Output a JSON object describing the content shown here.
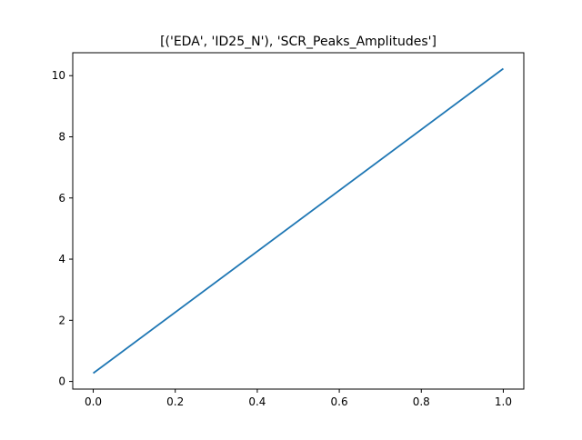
{
  "chart_data": {
    "type": "line",
    "title": "[('EDA', 'ID25_N'), 'SCR_Peaks_Amplitudes']",
    "xlabel": "",
    "ylabel": "",
    "xlim": [
      -0.05,
      1.05
    ],
    "ylim": [
      -0.25,
      10.75
    ],
    "xticks": [
      0.0,
      0.2,
      0.4,
      0.6,
      0.8,
      1.0
    ],
    "xtick_labels": [
      "0.0",
      "0.2",
      "0.4",
      "0.6",
      "0.8",
      "1.0"
    ],
    "yticks": [
      0,
      2,
      4,
      6,
      8,
      10
    ],
    "ytick_labels": [
      "0",
      "2",
      "4",
      "6",
      "8",
      "10"
    ],
    "grid": false,
    "legend": "none",
    "series": [
      {
        "color": "#1f77b4",
        "x": [
          0.0,
          1.0
        ],
        "y": [
          0.27,
          10.23
        ]
      }
    ]
  }
}
